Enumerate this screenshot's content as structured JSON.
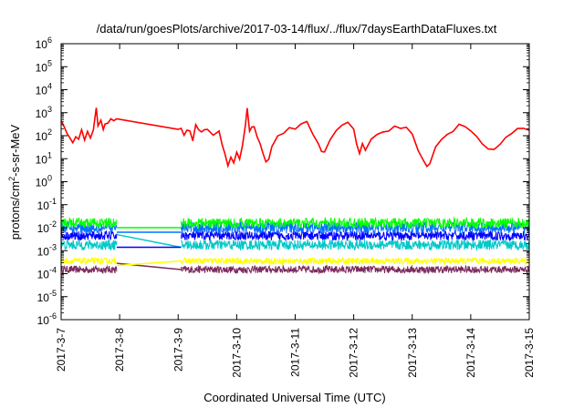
{
  "chart_data": {
    "type": "line",
    "title": "/data/run/goesPlots/archive/2017-03-14/flux/../flux/7daysEarthDataFluxes.txt",
    "xlabel": "Coordinated Universal Time (UTC)",
    "ylabel": {
      "prefix": "protons/cm",
      "sup": "2",
      "suffix": "-s-sr-MeV"
    },
    "xscale": "linear",
    "yscale": "log",
    "xlim": [
      0,
      8
    ],
    "ylim_exp": [
      -6,
      6
    ],
    "grid": false,
    "legend": "none",
    "x_ticks": [
      {
        "pos": 0,
        "label": "2017-3-7"
      },
      {
        "pos": 1,
        "label": "2017-3-8"
      },
      {
        "pos": 2,
        "label": "2017-3-9"
      },
      {
        "pos": 3,
        "label": "2017-3-10"
      },
      {
        "pos": 4,
        "label": "2017-3-11"
      },
      {
        "pos": 5,
        "label": "2017-3-12"
      },
      {
        "pos": 6,
        "label": "2017-3-13"
      },
      {
        "pos": 7,
        "label": "2017-3-14"
      },
      {
        "pos": 8,
        "label": "2017-3-15"
      }
    ],
    "y_ticks": [
      {
        "exp": 6,
        "label": "6"
      },
      {
        "exp": 5,
        "label": "5"
      },
      {
        "exp": 4,
        "label": "4"
      },
      {
        "exp": 3,
        "label": "3"
      },
      {
        "exp": 2,
        "label": "2"
      },
      {
        "exp": 1,
        "label": "1"
      },
      {
        "exp": 0,
        "label": "0"
      },
      {
        "exp": -1,
        "label": "-1"
      },
      {
        "exp": -2,
        "label": "-2"
      },
      {
        "exp": -3,
        "label": "-3"
      },
      {
        "exp": -4,
        "label": "-4"
      },
      {
        "exp": -5,
        "label": "-5"
      },
      {
        "exp": -6,
        "label": "-6"
      }
    ],
    "y_tick_base": "10",
    "series": [
      {
        "color": "#7b2a5c",
        "log_level": -3.82,
        "noise": 0.16,
        "gap_x": [
          0.95,
          2.05
        ],
        "gap_log": [
          -3.55,
          -3.82
        ]
      },
      {
        "color": "#ffff00",
        "log_level": -3.45,
        "noise": 0.14,
        "gap_x": [
          0.95,
          2.05
        ],
        "gap_log": [
          -3.65,
          -3.45
        ]
      },
      {
        "color": "#00c8c8",
        "log_level": -2.75,
        "noise": 0.22,
        "gap_x": [
          0.95,
          2.05
        ],
        "gap_log": [
          -2.3,
          -2.85
        ]
      },
      {
        "color": "#0000ff",
        "log_level": -2.35,
        "noise": 0.2,
        "gap_x": [
          0.95,
          2.05
        ],
        "gap_log": [
          -2.85,
          -2.85
        ]
      },
      {
        "color": "#0070ff",
        "log_level": -2.0,
        "noise": 0.25,
        "gap_x": [
          0.95,
          2.05
        ],
        "gap_log": [
          -2.2,
          -2.2
        ]
      },
      {
        "color": "#00ff00",
        "log_level": -1.8,
        "noise": 0.22,
        "gap_x": [
          0.95,
          2.05
        ],
        "gap_log": [
          -2.0,
          -2.0
        ]
      }
    ],
    "red_series": {
      "color": "#ff0000",
      "points": [
        [
          0.0,
          2.6
        ],
        [
          0.05,
          2.4
        ],
        [
          0.1,
          2.1
        ],
        [
          0.15,
          1.8
        ],
        [
          0.2,
          1.7
        ],
        [
          0.25,
          2.0
        ],
        [
          0.3,
          1.75
        ],
        [
          0.35,
          2.2
        ],
        [
          0.4,
          1.9
        ],
        [
          0.45,
          2.1
        ],
        [
          0.5,
          2.0
        ],
        [
          0.55,
          2.3
        ],
        [
          0.6,
          3.1
        ],
        [
          0.63,
          2.4
        ],
        [
          0.68,
          2.6
        ],
        [
          0.72,
          2.3
        ],
        [
          0.75,
          2.5
        ],
        [
          0.8,
          2.6
        ],
        [
          0.85,
          2.7
        ],
        [
          0.9,
          2.55
        ],
        [
          0.95,
          2.7
        ],
        [
          2.0,
          2.3
        ],
        [
          2.05,
          2.2
        ],
        [
          2.1,
          2.0
        ],
        [
          2.15,
          2.3
        ],
        [
          2.2,
          2.1
        ],
        [
          2.25,
          1.8
        ],
        [
          2.3,
          2.4
        ],
        [
          2.35,
          2.2
        ],
        [
          2.4,
          2.1
        ],
        [
          2.45,
          2.35
        ],
        [
          2.5,
          2.3
        ],
        [
          2.6,
          2.0
        ],
        [
          2.7,
          2.1
        ],
        [
          2.75,
          1.7
        ],
        [
          2.8,
          1.2
        ],
        [
          2.85,
          0.8
        ],
        [
          2.9,
          1.0
        ],
        [
          2.95,
          0.8
        ],
        [
          3.0,
          1.3
        ],
        [
          3.05,
          1.1
        ],
        [
          3.1,
          1.6
        ],
        [
          3.15,
          2.5
        ],
        [
          3.18,
          3.2
        ],
        [
          3.22,
          2.1
        ],
        [
          3.26,
          2.5
        ],
        [
          3.3,
          2.3
        ],
        [
          3.35,
          2.0
        ],
        [
          3.4,
          1.6
        ],
        [
          3.45,
          1.2
        ],
        [
          3.5,
          0.9
        ],
        [
          3.55,
          1.0
        ],
        [
          3.6,
          1.5
        ],
        [
          3.65,
          1.8
        ],
        [
          3.7,
          2.0
        ],
        [
          3.8,
          2.2
        ],
        [
          3.9,
          2.4
        ],
        [
          4.0,
          2.3
        ],
        [
          4.1,
          2.5
        ],
        [
          4.2,
          2.6
        ],
        [
          4.3,
          2.1
        ],
        [
          4.4,
          1.6
        ],
        [
          4.45,
          1.2
        ],
        [
          4.5,
          1.4
        ],
        [
          4.6,
          1.9
        ],
        [
          4.7,
          2.2
        ],
        [
          4.8,
          2.4
        ],
        [
          4.9,
          2.6
        ],
        [
          5.0,
          2.2
        ],
        [
          5.05,
          1.7
        ],
        [
          5.1,
          1.3
        ],
        [
          5.15,
          1.6
        ],
        [
          5.2,
          1.4
        ],
        [
          5.3,
          1.8
        ],
        [
          5.4,
          2.0
        ],
        [
          5.5,
          2.2
        ],
        [
          5.6,
          2.3
        ],
        [
          5.7,
          2.5
        ],
        [
          5.8,
          2.4
        ],
        [
          5.9,
          2.3
        ],
        [
          6.0,
          2.0
        ],
        [
          6.1,
          1.4
        ],
        [
          6.2,
          0.9
        ],
        [
          6.25,
          0.6
        ],
        [
          6.3,
          0.9
        ],
        [
          6.4,
          1.4
        ],
        [
          6.5,
          1.8
        ],
        [
          6.6,
          2.1
        ],
        [
          6.7,
          2.3
        ],
        [
          6.8,
          2.4
        ],
        [
          6.9,
          2.35
        ],
        [
          7.0,
          2.3
        ],
        [
          7.1,
          2.0
        ],
        [
          7.2,
          1.6
        ],
        [
          7.3,
          1.5
        ],
        [
          7.4,
          1.5
        ],
        [
          7.5,
          1.7
        ],
        [
          7.6,
          2.0
        ],
        [
          7.7,
          2.2
        ],
        [
          7.8,
          2.4
        ],
        [
          7.9,
          2.3
        ],
        [
          8.0,
          2.2
        ]
      ]
    }
  }
}
